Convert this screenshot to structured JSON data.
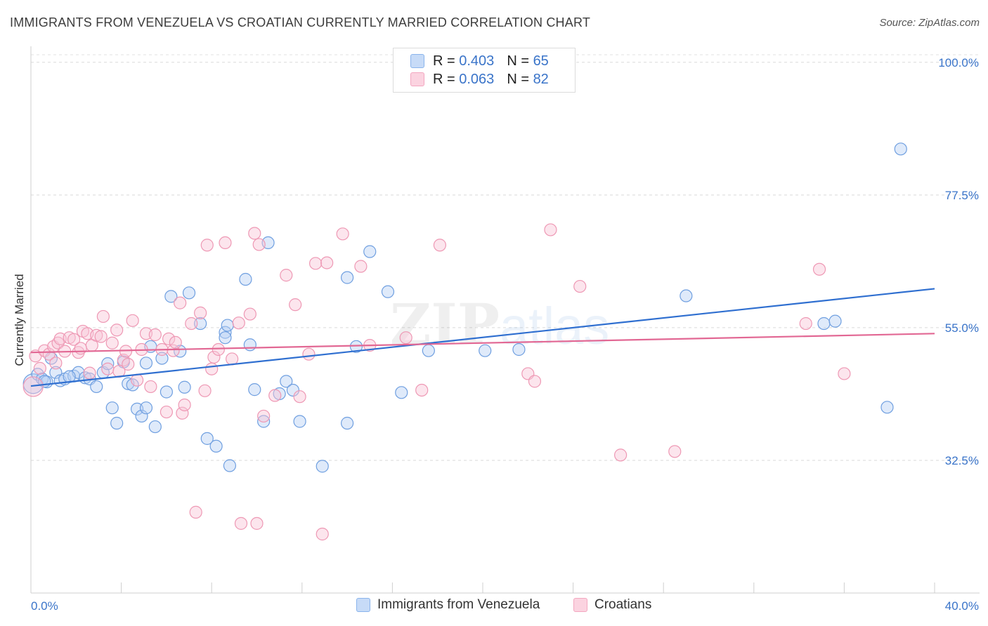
{
  "header": {
    "title": "IMMIGRANTS FROM VENEZUELA VS CROATIAN CURRENTLY MARRIED CORRELATION CHART",
    "source": "Source: ZipAtlas.com"
  },
  "legend": {
    "r_label": "R =",
    "n_label": "N =",
    "rows": [
      {
        "r": "0.403",
        "n": "65",
        "color": "#8ab4ec"
      },
      {
        "r": "0.063",
        "n": "82",
        "color": "#f3a7c0"
      }
    ]
  },
  "watermark": {
    "zip": "ZIP",
    "atlas": "atlas"
  },
  "bottom_legend": [
    {
      "label": "Immigrants from Venezuela",
      "color": "#8ab4ec"
    },
    {
      "label": "Croatians",
      "color": "#f3a7c0"
    }
  ],
  "chart_data": {
    "type": "scatter",
    "title": "IMMIGRANTS FROM VENEZUELA VS CROATIAN CURRENTLY MARRIED CORRELATION CHART",
    "xlabel": "",
    "ylabel": "Currently Married",
    "xlim": [
      0,
      40
    ],
    "ylim": [
      10,
      102
    ],
    "x_tick_labels": [
      "0.0%",
      "40.0%"
    ],
    "y_ticks": [
      32.5,
      55.0,
      77.5,
      100.0
    ],
    "y_tick_labels": [
      "32.5%",
      "55.0%",
      "77.5%",
      "100.0%"
    ],
    "grid": "horizontal dashed",
    "legend_position": "top-center",
    "series": [
      {
        "name": "Immigrants from Venezuela",
        "color": "#6f9fe0",
        "trend_color": "#2f6fd0",
        "trend": {
          "x": [
            0,
            40
          ],
          "y": [
            45.1,
            61.6
          ]
        },
        "points": [
          [
            0.1,
            45.5
          ],
          [
            0.3,
            47.1
          ],
          [
            0.5,
            46.3
          ],
          [
            0.7,
            45.8
          ],
          [
            0.9,
            49.8
          ],
          [
            1.1,
            47.4
          ],
          [
            1.3,
            46.0
          ],
          [
            1.5,
            46.3
          ],
          [
            1.9,
            46.8
          ],
          [
            2.1,
            47.4
          ],
          [
            2.4,
            46.5
          ],
          [
            2.6,
            46.3
          ],
          [
            2.9,
            45.0
          ],
          [
            3.2,
            47.4
          ],
          [
            3.4,
            48.9
          ],
          [
            3.6,
            41.4
          ],
          [
            3.8,
            38.8
          ],
          [
            4.1,
            49.2
          ],
          [
            4.3,
            45.5
          ],
          [
            4.5,
            45.3
          ],
          [
            4.7,
            41.2
          ],
          [
            4.9,
            40.0
          ],
          [
            5.1,
            41.4
          ],
          [
            5.5,
            38.2
          ],
          [
            5.3,
            51.8
          ],
          [
            5.8,
            49.8
          ],
          [
            6.0,
            44.1
          ],
          [
            6.2,
            60.3
          ],
          [
            6.6,
            51.0
          ],
          [
            6.8,
            44.9
          ],
          [
            7.0,
            60.9
          ],
          [
            7.5,
            55.7
          ],
          [
            7.8,
            36.2
          ],
          [
            8.2,
            34.9
          ],
          [
            8.6,
            54.2
          ],
          [
            8.6,
            53.3
          ],
          [
            8.7,
            55.4
          ],
          [
            8.8,
            31.6
          ],
          [
            9.5,
            63.2
          ],
          [
            9.7,
            52.1
          ],
          [
            9.9,
            44.5
          ],
          [
            10.3,
            39.1
          ],
          [
            10.5,
            69.4
          ],
          [
            11.0,
            43.8
          ],
          [
            11.3,
            45.9
          ],
          [
            11.6,
            44.4
          ],
          [
            11.9,
            39.1
          ],
          [
            12.9,
            31.5
          ],
          [
            14.0,
            63.5
          ],
          [
            14.0,
            38.8
          ],
          [
            14.4,
            51.8
          ],
          [
            15.0,
            67.9
          ],
          [
            15.8,
            61.1
          ],
          [
            16.4,
            44.0
          ],
          [
            17.6,
            51.1
          ],
          [
            20.1,
            51.1
          ],
          [
            21.6,
            51.3
          ],
          [
            29.0,
            60.4
          ],
          [
            35.1,
            55.7
          ],
          [
            35.6,
            56.1
          ],
          [
            37.9,
            41.5
          ],
          [
            38.5,
            85.3
          ],
          [
            1.7,
            46.7
          ],
          [
            5.1,
            49.0
          ],
          [
            0.6,
            45.9
          ]
        ]
      },
      {
        "name": "Croatians",
        "color": "#f1a0b9",
        "trend_color": "#e26894",
        "trend": {
          "x": [
            0,
            40
          ],
          "y": [
            50.8,
            54.0
          ]
        },
        "points": [
          [
            0.2,
            50.2
          ],
          [
            0.4,
            48.1
          ],
          [
            0.6,
            51.1
          ],
          [
            0.8,
            50.5
          ],
          [
            1.0,
            51.8
          ],
          [
            1.2,
            52.4
          ],
          [
            1.3,
            53.1
          ],
          [
            1.5,
            51.0
          ],
          [
            1.7,
            53.3
          ],
          [
            1.9,
            53.0
          ],
          [
            2.1,
            50.8
          ],
          [
            2.3,
            54.4
          ],
          [
            2.5,
            54.0
          ],
          [
            2.6,
            47.3
          ],
          [
            2.7,
            52.0
          ],
          [
            2.9,
            53.7
          ],
          [
            3.1,
            53.5
          ],
          [
            3.2,
            56.9
          ],
          [
            3.4,
            48.0
          ],
          [
            3.6,
            52.4
          ],
          [
            3.8,
            54.6
          ],
          [
            3.9,
            47.6
          ],
          [
            4.1,
            49.5
          ],
          [
            4.3,
            48.8
          ],
          [
            4.5,
            56.2
          ],
          [
            4.7,
            46.1
          ],
          [
            4.9,
            51.3
          ],
          [
            5.1,
            54.0
          ],
          [
            5.3,
            45.0
          ],
          [
            5.5,
            53.8
          ],
          [
            5.8,
            51.3
          ],
          [
            6.0,
            40.7
          ],
          [
            6.1,
            53.1
          ],
          [
            6.3,
            51.1
          ],
          [
            6.6,
            59.2
          ],
          [
            6.7,
            40.5
          ],
          [
            6.8,
            41.9
          ],
          [
            7.1,
            55.7
          ],
          [
            7.5,
            57.5
          ],
          [
            7.7,
            44.3
          ],
          [
            7.8,
            69.0
          ],
          [
            8.0,
            48.0
          ],
          [
            8.1,
            50.0
          ],
          [
            8.3,
            51.3
          ],
          [
            8.6,
            69.4
          ],
          [
            8.9,
            49.7
          ],
          [
            9.2,
            55.8
          ],
          [
            9.7,
            57.3
          ],
          [
            9.9,
            71.0
          ],
          [
            10.1,
            69.1
          ],
          [
            10.3,
            40.0
          ],
          [
            10.8,
            43.5
          ],
          [
            11.3,
            63.9
          ],
          [
            11.7,
            58.9
          ],
          [
            11.9,
            43.3
          ],
          [
            12.3,
            50.5
          ],
          [
            12.6,
            65.9
          ],
          [
            13.1,
            66.0
          ],
          [
            13.8,
            70.9
          ],
          [
            14.6,
            65.4
          ],
          [
            15.0,
            52.0
          ],
          [
            16.6,
            53.3
          ],
          [
            17.3,
            44.4
          ],
          [
            18.1,
            69.0
          ],
          [
            22.0,
            47.2
          ],
          [
            22.3,
            45.9
          ],
          [
            23.0,
            71.6
          ],
          [
            24.3,
            62.0
          ],
          [
            26.1,
            33.4
          ],
          [
            28.5,
            34.0
          ],
          [
            34.3,
            55.7
          ],
          [
            34.9,
            64.9
          ],
          [
            36.0,
            47.2
          ],
          [
            7.3,
            23.7
          ],
          [
            9.3,
            21.8
          ],
          [
            10.0,
            21.8
          ],
          [
            12.9,
            20.0
          ],
          [
            0.1,
            45.0
          ],
          [
            4.2,
            51.0
          ],
          [
            2.2,
            51.5
          ],
          [
            6.4,
            52.5
          ],
          [
            1.1,
            49.0
          ]
        ]
      }
    ]
  }
}
